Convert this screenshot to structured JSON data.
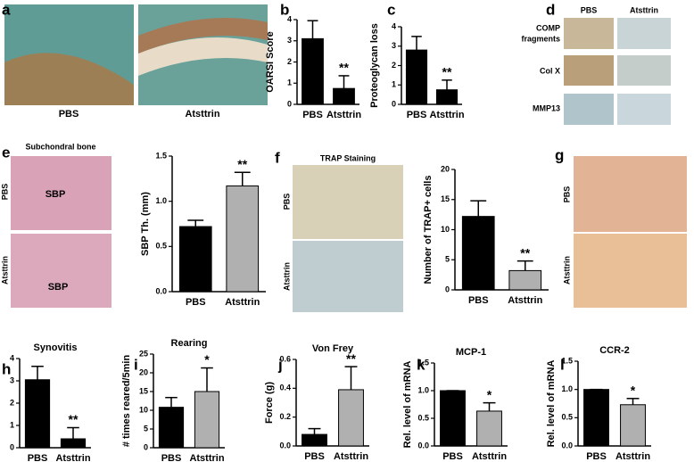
{
  "panel_labels": [
    "a",
    "b",
    "c",
    "d",
    "e",
    "f",
    "g",
    "h",
    "i",
    "j",
    "k",
    "l"
  ],
  "image_labels": {
    "a": [
      "PBS",
      "Atsttrin"
    ],
    "d_columns": [
      "PBS",
      "Atsttrin"
    ],
    "d_rows": [
      "COMP",
      "fragments",
      "Col X",
      "MMP13"
    ],
    "e_title": "Subchondral bone",
    "e_rows": [
      "PBS",
      "Atsttrin"
    ],
    "e_marks": [
      "SBP",
      "SBP"
    ],
    "f_title": "TRAP Staining",
    "f_rows": [
      "PBS",
      "Atsttrin"
    ],
    "g_rows": [
      "PBS",
      "Atsttrin"
    ]
  },
  "chart_data": [
    {
      "type": "bar",
      "ylabel": "OARSI Score",
      "categories": [
        "PBS",
        "Atsttrin"
      ],
      "values": [
        3.1,
        0.75
      ],
      "errors": [
        0.85,
        0.6
      ],
      "colors": [
        "#000000",
        "#000000"
      ],
      "annotation": "**",
      "ylim": [
        0,
        4
      ],
      "yticks": [
        0,
        1,
        2,
        3,
        4
      ]
    },
    {
      "type": "bar",
      "ylabel": "Proteoglycan loss",
      "categories": [
        "PBS",
        "Atsttrin"
      ],
      "values": [
        2.8,
        0.75
      ],
      "errors": [
        0.7,
        0.5
      ],
      "colors": [
        "#000000",
        "#000000"
      ],
      "annotation": "**",
      "ylim": [
        0,
        4
      ],
      "yticks": [
        0,
        1,
        2,
        3,
        4
      ]
    },
    {
      "type": "bar",
      "ylabel": "SBP Th. (mm)",
      "categories": [
        "PBS",
        "Atsttrin"
      ],
      "values": [
        0.72,
        1.17
      ],
      "errors": [
        0.07,
        0.15
      ],
      "colors": [
        "#000000",
        "#b0b0b0"
      ],
      "annotation": "**",
      "ylim": [
        0,
        1.5
      ],
      "yticks": [
        {
          "value": 0,
          "label": "0.0"
        },
        {
          "value": 0.5,
          "label": "0.5"
        },
        {
          "value": 1,
          "label": "1.0"
        },
        {
          "value": 1.5,
          "label": "1.5"
        }
      ]
    },
    {
      "type": "bar",
      "ylabel": "Number of TRAP+ cells",
      "categories": [
        "PBS",
        "Atsttrin"
      ],
      "values": [
        12.2,
        3.2
      ],
      "errors": [
        2.6,
        1.6
      ],
      "colors": [
        "#000000",
        "#b0b0b0"
      ],
      "annotation": "**",
      "ylim": [
        0,
        20
      ],
      "yticks": [
        0,
        5,
        10,
        15,
        20
      ]
    },
    {
      "type": "bar",
      "title": "Synovitis",
      "categories": [
        "PBS",
        "Atsttrin"
      ],
      "values": [
        3.05,
        0.4
      ],
      "errors": [
        0.6,
        0.5
      ],
      "colors": [
        "#000000",
        "#000000"
      ],
      "annotation": "**",
      "ylim": [
        0,
        4
      ],
      "yticks": [
        0,
        1,
        2,
        3,
        4
      ]
    },
    {
      "type": "bar",
      "title": "Rearing",
      "ylabel": "# times reared/5min",
      "categories": [
        "PBS",
        "Atsttrin"
      ],
      "values": [
        10.8,
        15
      ],
      "errors": [
        2.6,
        6.3
      ],
      "colors": [
        "#000000",
        "#b0b0b0"
      ],
      "annotation": "*",
      "ylim": [
        0,
        25
      ],
      "yticks": [
        0,
        5,
        10,
        15,
        20,
        25
      ]
    },
    {
      "type": "bar",
      "title": "Von Frey",
      "ylabel": "Force (g)",
      "categories": [
        "PBS",
        "Atsttrin"
      ],
      "values": [
        0.08,
        0.39
      ],
      "errors": [
        0.04,
        0.16
      ],
      "colors": [
        "#000000",
        "#b0b0b0"
      ],
      "annotation": "**",
      "ylim": [
        0,
        0.6
      ],
      "yticks": [
        {
          "value": 0,
          "label": "0.0"
        },
        {
          "value": 0.2,
          "label": "0.2"
        },
        {
          "value": 0.4,
          "label": "0.4"
        },
        {
          "value": 0.6,
          "label": "0.6"
        }
      ]
    },
    {
      "type": "bar",
      "title": "MCP-1",
      "ylabel": "Rel. level of mRNA",
      "categories": [
        "PBS",
        "Atsttrin"
      ],
      "values": [
        1.0,
        0.63
      ],
      "errors": [
        0,
        0.15
      ],
      "colors": [
        "#000000",
        "#b0b0b0"
      ],
      "annotation": "*",
      "ylim": [
        0,
        1.5
      ],
      "yticks": [
        {
          "value": 0,
          "label": "0.0"
        },
        {
          "value": 0.5,
          "label": "0.5"
        },
        {
          "value": 1,
          "label": "1.0"
        },
        {
          "value": 1.5,
          "label": "1.5"
        }
      ]
    },
    {
      "type": "bar",
      "title": "CCR-2",
      "ylabel": "Rel. level of mRNA",
      "categories": [
        "PBS",
        "Atsttrin"
      ],
      "values": [
        1.0,
        0.73
      ],
      "errors": [
        0,
        0.11
      ],
      "colors": [
        "#000000",
        "#b0b0b0"
      ],
      "annotation": "*",
      "ylim": [
        0,
        1.5
      ],
      "yticks": [
        {
          "value": 0,
          "label": "0.0"
        },
        {
          "value": 0.5,
          "label": "0.5"
        },
        {
          "value": 1,
          "label": "1.0"
        },
        {
          "value": 1.5,
          "label": "1.5"
        }
      ]
    }
  ]
}
